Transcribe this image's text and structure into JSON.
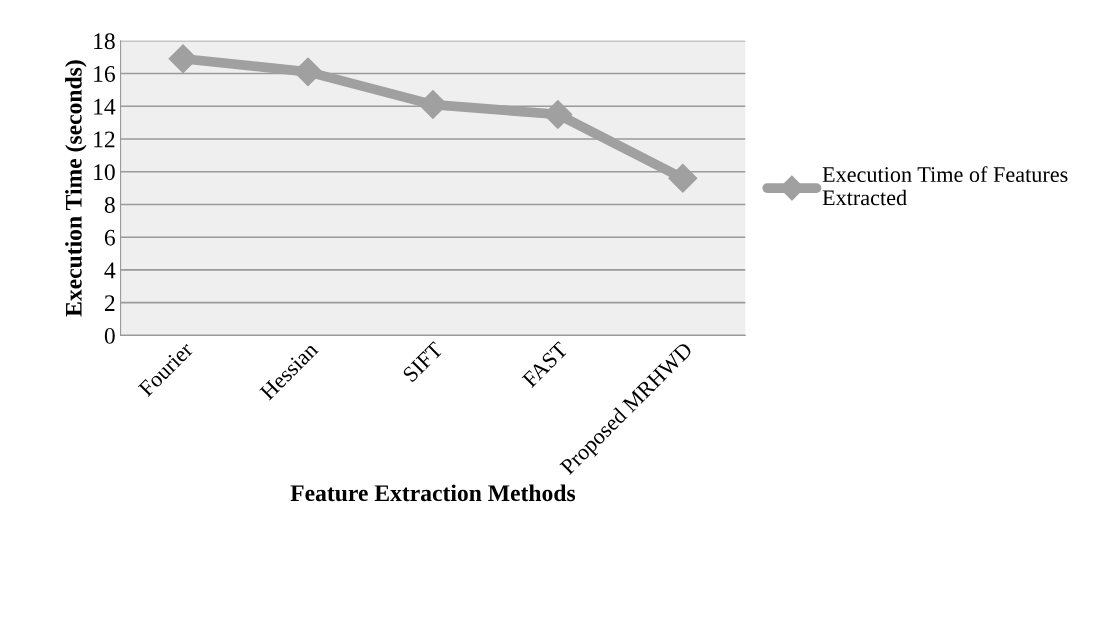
{
  "chart_data": {
    "type": "line",
    "xlabel": "Feature Extraction Methods",
    "ylabel": "Execution Time (seconds)",
    "categories": [
      "Fourier",
      "Hessian",
      "SIFT",
      "FAST",
      "Proposed MRHWD"
    ],
    "series": [
      {
        "name": "Execution Time of Features Extracted",
        "color": "#a0a0a0",
        "values": [
          16.9,
          16.1,
          14.1,
          13.5,
          9.6
        ]
      }
    ],
    "ylim": [
      0,
      18
    ],
    "yticks": [
      0,
      2,
      4,
      6,
      8,
      10,
      12,
      14,
      16,
      18
    ],
    "grid": "y",
    "legend": "right",
    "marker": "diamond",
    "line_style": "solid"
  }
}
